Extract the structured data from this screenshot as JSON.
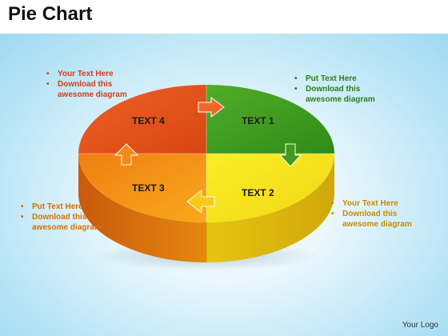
{
  "title": "Pie Chart",
  "segments": [
    {
      "label": "TEXT 1",
      "color": "#3f9a1f"
    },
    {
      "label": "TEXT 2",
      "color": "#f2e61a"
    },
    {
      "label": "TEXT 3",
      "color": "#f39a10"
    },
    {
      "label": "TEXT 4",
      "color": "#e8571a"
    }
  ],
  "notes": {
    "top_left": {
      "lines": [
        "Your Text Here",
        "Download this awesome diagram"
      ]
    },
    "top_right": {
      "lines": [
        "Put Text Here",
        "Download this awesome diagram"
      ]
    },
    "bottom_left": {
      "lines": [
        "Put Text Here",
        "Download this awesome diagram"
      ]
    },
    "bottom_right": {
      "lines": [
        "Your Text Here",
        "Download this awesome diagram"
      ]
    }
  },
  "footer": {
    "logo": "Your Logo"
  }
}
